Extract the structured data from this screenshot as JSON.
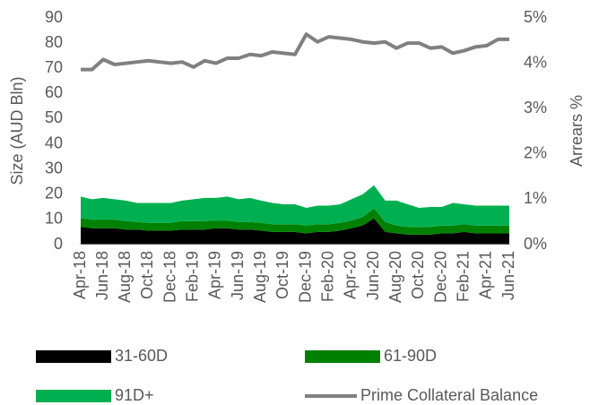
{
  "chart_data": {
    "type": "stacked-area-line",
    "y_label": "Size (AUD Bln)",
    "y2_label": "Arrears %",
    "categories": [
      "Apr-18",
      null,
      "Jun-18",
      null,
      "Aug-18",
      null,
      "Oct-18",
      null,
      "Dec-18",
      null,
      "Feb-19",
      null,
      "Apr-19",
      null,
      "Jun-19",
      null,
      "Aug-19",
      null,
      "Oct-19",
      null,
      "Dec-19",
      null,
      "Feb-20",
      null,
      "Apr-20",
      null,
      "Jun-20",
      null,
      "Aug-20",
      null,
      "Oct-20",
      null,
      "Dec-20",
      null,
      "Feb-21",
      null,
      "Apr-21",
      null,
      "Jun-21"
    ],
    "stacked": true,
    "series": [
      {
        "name": "31-60D",
        "color": "#000000",
        "axis": "y2",
        "values": [
          0.39,
          0.36,
          0.36,
          0.36,
          0.33,
          0.33,
          0.31,
          0.31,
          0.31,
          0.33,
          0.33,
          0.33,
          0.36,
          0.36,
          0.33,
          0.33,
          0.31,
          0.28,
          0.28,
          0.28,
          0.25,
          0.28,
          0.28,
          0.31,
          0.36,
          0.42,
          0.58,
          0.28,
          0.25,
          0.22,
          0.22,
          0.22,
          0.25,
          0.25,
          0.28,
          0.25,
          0.25,
          0.25,
          0.25
        ]
      },
      {
        "name": "61-90D",
        "color": "#008000",
        "axis": "y2",
        "values": [
          0.19,
          0.19,
          0.19,
          0.19,
          0.19,
          0.17,
          0.17,
          0.17,
          0.17,
          0.19,
          0.19,
          0.19,
          0.17,
          0.17,
          0.17,
          0.17,
          0.17,
          0.17,
          0.17,
          0.17,
          0.17,
          0.17,
          0.17,
          0.17,
          0.17,
          0.19,
          0.22,
          0.22,
          0.17,
          0.17,
          0.17,
          0.17,
          0.17,
          0.17,
          0.17,
          0.17,
          0.17,
          0.17,
          0.17
        ]
      },
      {
        "name": "91D+",
        "color": "#00b050",
        "axis": "y2",
        "values": [
          0.48,
          0.45,
          0.48,
          0.45,
          0.45,
          0.42,
          0.44,
          0.44,
          0.44,
          0.45,
          0.48,
          0.51,
          0.5,
          0.53,
          0.5,
          0.53,
          0.49,
          0.47,
          0.44,
          0.44,
          0.39,
          0.41,
          0.41,
          0.41,
          0.47,
          0.5,
          0.51,
          0.47,
          0.55,
          0.5,
          0.42,
          0.44,
          0.41,
          0.5,
          0.44,
          0.44,
          0.44,
          0.44,
          0.44
        ]
      },
      {
        "name": "Prime Collateral Balance",
        "color": "#808080",
        "axis": "y",
        "values": [
          69.5,
          69.5,
          73.5,
          71.5,
          72,
          72.5,
          73,
          72.5,
          72,
          72.5,
          70.5,
          73,
          72,
          74,
          74,
          75.5,
          75,
          76.5,
          76,
          75.5,
          83.5,
          80.5,
          82.5,
          82,
          81.5,
          80.5,
          80,
          80.5,
          78,
          80,
          80,
          78,
          78.5,
          76,
          77,
          78.5,
          79,
          81.5,
          81.5
        ]
      }
    ],
    "ylim": [
      0,
      90
    ],
    "yticks": [
      0,
      10,
      20,
      30,
      40,
      50,
      60,
      70,
      80,
      90
    ],
    "y2lim": [
      0,
      5
    ],
    "y2ticks": [
      {
        "value": 0,
        "label": "0%"
      },
      {
        "value": 1,
        "label": "1%"
      },
      {
        "value": 2,
        "label": "2%"
      },
      {
        "value": 3,
        "label": "3%"
      },
      {
        "value": 4,
        "label": "4%"
      },
      {
        "value": 5,
        "label": "5%"
      }
    ],
    "grid": false
  }
}
